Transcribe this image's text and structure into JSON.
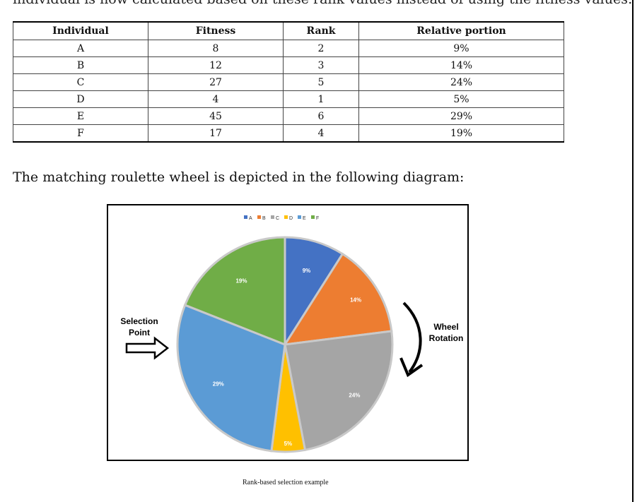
{
  "top_line": "individual is now calculated based on these rank values instead of using the fitness values:",
  "table": {
    "headers": [
      "Individual",
      "Fitness",
      "Rank",
      "Relative portion"
    ],
    "rows": [
      [
        "A",
        "8",
        "2",
        "9%"
      ],
      [
        "B",
        "12",
        "3",
        "14%"
      ],
      [
        "C",
        "27",
        "5",
        "24%"
      ],
      [
        "D",
        "4",
        "1",
        "5%"
      ],
      [
        "E",
        "45",
        "6",
        "29%"
      ],
      [
        "F",
        "17",
        "4",
        "19%"
      ]
    ]
  },
  "intro_text": "The matching roulette wheel is depicted in the following diagram:",
  "figure": {
    "selection_label_1": "Selection",
    "selection_label_2": "Point",
    "rotation_label_1": "Wheel",
    "rotation_label_2": "Rotation",
    "caption": "Rank-based selection example"
  },
  "chart_data": {
    "type": "pie",
    "title": "",
    "legend_position": "top",
    "slices": [
      {
        "name": "A",
        "value": 9,
        "label": "9%",
        "color": "#4472c4"
      },
      {
        "name": "B",
        "value": 14,
        "label": "14%",
        "color": "#ed7d31"
      },
      {
        "name": "C",
        "value": 24,
        "label": "24%",
        "color": "#a5a5a5"
      },
      {
        "name": "D",
        "value": 5,
        "label": "5%",
        "color": "#ffc000"
      },
      {
        "name": "E",
        "value": 29,
        "label": "29%",
        "color": "#5b9bd5"
      },
      {
        "name": "F",
        "value": 19,
        "label": "19%",
        "color": "#70ad47"
      }
    ]
  }
}
